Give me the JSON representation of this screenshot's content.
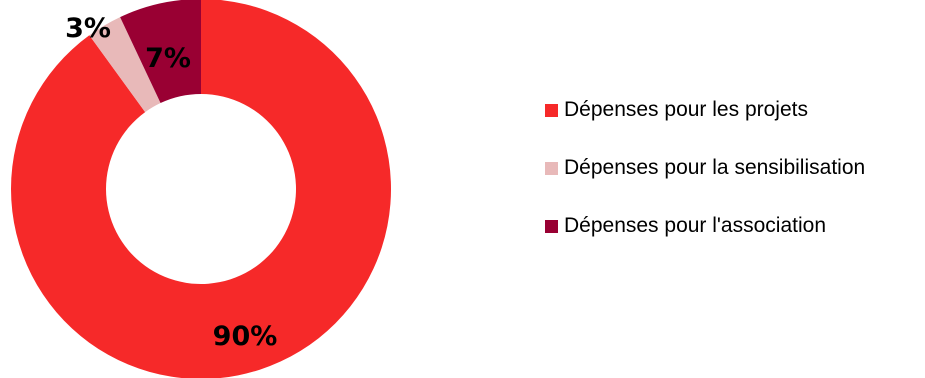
{
  "chart_data": {
    "type": "pie",
    "donut": true,
    "categories": [
      "Dépenses pour les projets",
      "Dépenses pour la sensibilisation",
      "Dépenses pour l'association"
    ],
    "values": [
      90,
      3,
      7
    ],
    "value_labels": [
      "90%",
      "3%",
      "7%"
    ],
    "colors": [
      "#F62929",
      "#E8B9B9",
      "#990033"
    ],
    "legend_position": "right",
    "start_angle": "top, clockwise"
  }
}
